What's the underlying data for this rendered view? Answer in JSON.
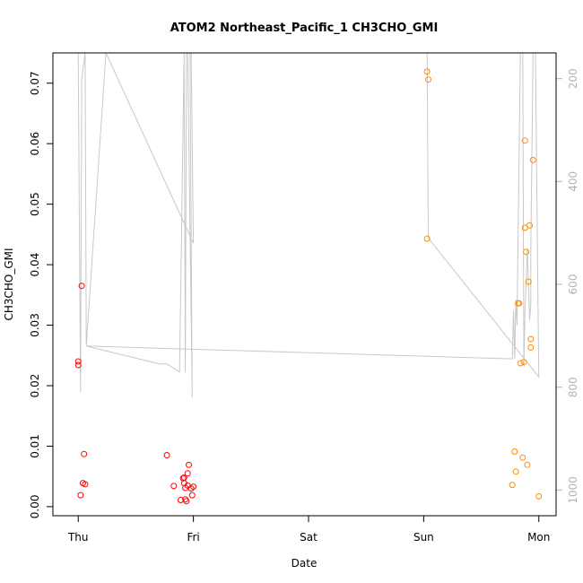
{
  "chart_data": {
    "type": "scatter",
    "title": "ATOM2 Northeast_Pacific_1 CH3CHO_GMI",
    "xlabel": "Date",
    "ylabel": "CH3CHO_GMI",
    "x_unit": "days",
    "x_ticks": [
      {
        "value": 0,
        "label": "Thu"
      },
      {
        "value": 1,
        "label": "Fri"
      },
      {
        "value": 2,
        "label": "Sat"
      },
      {
        "value": 3,
        "label": "Sun"
      },
      {
        "value": 4,
        "label": "Mon"
      }
    ],
    "xlim": [
      -0.22,
      4.15
    ],
    "ylim": [
      -0.0015,
      0.075
    ],
    "y_ticks": [
      0.0,
      0.01,
      0.02,
      0.03,
      0.04,
      0.05,
      0.06,
      0.07
    ],
    "y_tick_labels": [
      "0.00",
      "0.01",
      "0.02",
      "0.03",
      "0.04",
      "0.05",
      "0.06",
      "0.07"
    ],
    "y2_ticks": [
      200,
      400,
      600,
      800,
      1000
    ],
    "y2_lim": [
      1050,
      150
    ],
    "series": [
      {
        "color": "#ff0000",
        "marker": "open-circle",
        "points": [
          [
            0.0,
            0.024
          ],
          [
            0.0,
            0.0234
          ],
          [
            0.03,
            0.0365
          ],
          [
            0.02,
            0.0019
          ],
          [
            0.04,
            0.0039
          ],
          [
            0.05,
            0.0087
          ],
          [
            0.06,
            0.0037
          ],
          [
            0.77,
            0.0085
          ],
          [
            0.83,
            0.0034
          ],
          [
            0.89,
            0.0011
          ],
          [
            0.91,
            0.0047
          ],
          [
            0.92,
            0.0048
          ],
          [
            0.92,
            0.0039
          ],
          [
            0.93,
            0.0031
          ],
          [
            0.94,
            0.0009
          ],
          [
            0.93,
            0.0012
          ],
          [
            0.95,
            0.0055
          ],
          [
            0.95,
            0.0035
          ],
          [
            0.96,
            0.0069
          ],
          [
            0.98,
            0.003
          ],
          [
            0.99,
            0.0019
          ],
          [
            1.0,
            0.0033
          ]
        ]
      },
      {
        "color": "#ff8c00",
        "marker": "open-circle",
        "points": [
          [
            3.03,
            0.0719
          ],
          [
            3.04,
            0.0706
          ],
          [
            3.03,
            0.0443
          ],
          [
            3.77,
            0.0036
          ],
          [
            3.79,
            0.0091
          ],
          [
            3.8,
            0.0058
          ],
          [
            3.82,
            0.0336
          ],
          [
            3.83,
            0.0336
          ],
          [
            3.84,
            0.0237
          ],
          [
            3.86,
            0.0081
          ],
          [
            3.87,
            0.0239
          ],
          [
            3.88,
            0.0605
          ],
          [
            3.88,
            0.0461
          ],
          [
            3.89,
            0.0421
          ],
          [
            3.9,
            0.0069
          ],
          [
            3.91,
            0.0372
          ],
          [
            3.92,
            0.0465
          ],
          [
            3.93,
            0.0277
          ],
          [
            3.93,
            0.0263
          ],
          [
            3.95,
            0.0573
          ],
          [
            4.0,
            0.0017
          ]
        ]
      },
      {
        "color": "#c8c8c8",
        "marker": "line",
        "axis": "right",
        "points": [
          [
            0.0,
            150
          ],
          [
            0.02,
            810
          ],
          [
            0.03,
            200
          ],
          [
            0.06,
            150
          ],
          [
            0.07,
            720
          ],
          [
            0.24,
            150
          ],
          [
            1.0,
            520
          ],
          [
            0.98,
            150
          ],
          [
            0.97,
            140
          ],
          [
            0.99,
            820
          ],
          [
            0.95,
            140
          ],
          [
            0.94,
            150
          ],
          [
            0.93,
            770
          ],
          [
            0.92,
            150
          ],
          [
            0.88,
            770
          ],
          [
            0.77,
            755
          ],
          [
            0.71,
            755
          ],
          [
            0.07,
            720
          ],
          [
            3.77,
            745
          ],
          [
            3.78,
            650
          ],
          [
            3.79,
            745
          ],
          [
            3.8,
            630
          ],
          [
            3.81,
            680
          ],
          [
            3.84,
            150
          ],
          [
            3.86,
            140
          ],
          [
            3.87,
            760
          ],
          [
            3.88,
            650
          ],
          [
            3.89,
            600
          ],
          [
            3.9,
            530
          ],
          [
            3.92,
            670
          ],
          [
            3.93,
            640
          ],
          [
            3.93,
            530
          ],
          [
            3.95,
            150
          ],
          [
            3.97,
            140
          ],
          [
            4.0,
            780
          ],
          [
            3.04,
            510
          ],
          [
            3.03,
            150
          ]
        ]
      }
    ]
  }
}
